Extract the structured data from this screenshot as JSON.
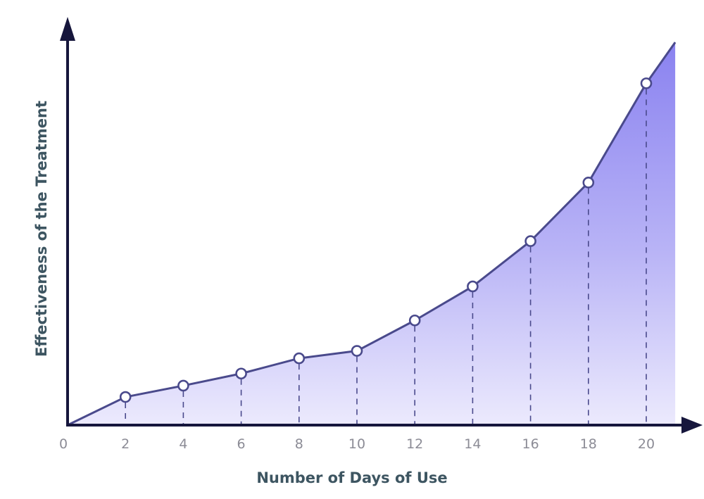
{
  "chart_data": {
    "type": "area",
    "xlabel": "Number of Days of Use",
    "ylabel": "Effectiveness of the Treatment",
    "x_ticks": [
      "0",
      "2",
      "4",
      "6",
      "8",
      "10",
      "12",
      "14",
      "16",
      "18",
      "20"
    ],
    "xlim": [
      0,
      21
    ],
    "ylim": [
      0,
      100
    ],
    "series": [
      {
        "x": [
          0,
          2,
          4,
          6,
          8,
          10,
          12,
          14,
          16,
          18,
          20,
          21
        ],
        "y": [
          0,
          7.2,
          10.1,
          13.2,
          17.1,
          19.0,
          26.8,
          35.5,
          47.1,
          62.1,
          87.5,
          98
        ]
      }
    ],
    "marker_x": [
      2,
      4,
      6,
      8,
      10,
      12,
      14,
      16,
      18,
      20
    ],
    "grid": false,
    "legend": "none",
    "colors": {
      "line": "#4a4a8c",
      "axis": "#16163c",
      "fill_top": "#8a82f0",
      "fill_bottom": "#eceafd",
      "tick_text": "#8c8c96",
      "title_text": "#3d5561"
    }
  }
}
